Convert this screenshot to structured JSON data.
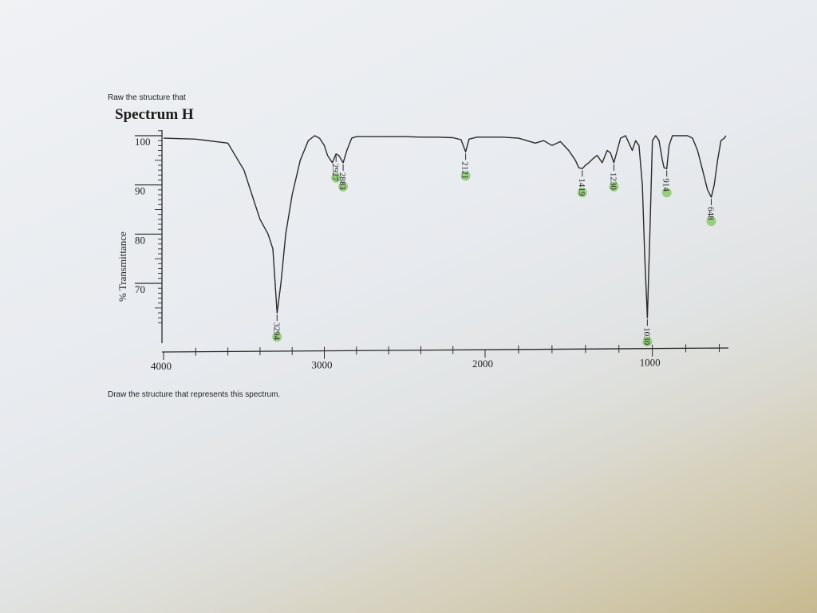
{
  "prompt_top": "Raw the structure that",
  "prompt_bottom": "Draw the structure that represents this spectrum.",
  "chart_data": {
    "type": "line",
    "title": "Spectrum H",
    "xlabel": "",
    "ylabel": "% Transmittance",
    "xlim": [
      4000,
      550
    ],
    "ylim": [
      60,
      101
    ],
    "x_ticks": [
      "4000",
      "3000",
      "2000",
      "1000"
    ],
    "y_ticks": [
      "100",
      "90",
      "80",
      "70"
    ],
    "grid": false,
    "series": [
      {
        "x": [
          4000,
          3800,
          3600,
          3500,
          3450,
          3400,
          3350,
          3320,
          3294,
          3270,
          3240,
          3200,
          3150,
          3100,
          3060,
          3030,
          3000,
          2980,
          2950,
          2927,
          2910,
          2883,
          2860,
          2830,
          2800,
          2700,
          2600,
          2500,
          2400,
          2300,
          2200,
          2150,
          2121,
          2100,
          2050,
          2000,
          1900,
          1800,
          1750,
          1700,
          1650,
          1600,
          1550,
          1500,
          1460,
          1440,
          1419,
          1400,
          1380,
          1350,
          1330,
          1300,
          1270,
          1250,
          1230,
          1210,
          1190,
          1160,
          1140,
          1120,
          1100,
          1080,
          1060,
          1045,
          1030,
          1015,
          1000,
          980,
          960,
          940,
          930,
          914,
          900,
          880,
          850,
          820,
          790,
          760,
          730,
          700,
          670,
          648,
          630,
          610,
          590,
          570,
          560
        ],
        "values": [
          99.5,
          99.3,
          98.5,
          93,
          88,
          83,
          80,
          77,
          64,
          70,
          80,
          88,
          95,
          99,
          100,
          99.5,
          98,
          96,
          94.5,
          96.3,
          96,
          94.5,
          97,
          99.5,
          99.8,
          99.8,
          99.8,
          99.8,
          99.7,
          99.7,
          99.6,
          99.2,
          96.7,
          99.3,
          99.7,
          99.7,
          99.7,
          99.5,
          99,
          98.5,
          99,
          98,
          98.8,
          97,
          95,
          93.5,
          93.3,
          94,
          94.5,
          95.5,
          96,
          94.5,
          97,
          96.5,
          94.5,
          97,
          99.5,
          100,
          98.5,
          97,
          99,
          98,
          90,
          75,
          63,
          80,
          99,
          100,
          99,
          95,
          93.5,
          93.3,
          98,
          100,
          100,
          100,
          100,
          99.5,
          97,
          93,
          89,
          87.5,
          90,
          95,
          99,
          99.5,
          100
        ]
      }
    ],
    "peak_labels": [
      {
        "x": 3294,
        "label": "3294"
      },
      {
        "x": 2927,
        "label": "2927"
      },
      {
        "x": 2883,
        "label": "2883"
      },
      {
        "x": 2121,
        "label": "2121"
      },
      {
        "x": 1419,
        "label": "1419"
      },
      {
        "x": 1230,
        "label": "1230"
      },
      {
        "x": 1030,
        "label": "1030"
      },
      {
        "x": 914,
        "label": "914"
      },
      {
        "x": 648,
        "label": "648"
      }
    ],
    "highlight_color": "#8cc870",
    "line_color": "#2a2a2a"
  }
}
